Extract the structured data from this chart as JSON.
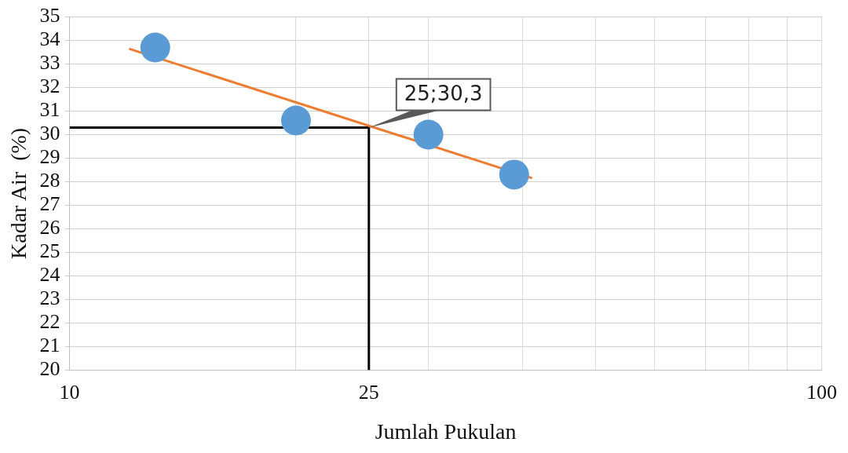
{
  "chart_data": {
    "type": "scatter",
    "xlabel": "Jumlah Pukulan",
    "ylabel": "Kadar Air  (%)",
    "log": "x",
    "grid": true,
    "legend": false,
    "marker": "circle",
    "xlim": [
      10,
      100
    ],
    "xticks": [
      10,
      {
        "value": 20,
        "label": null
      },
      25,
      {
        "value": 30,
        "label": null
      },
      {
        "value": 40,
        "label": null
      },
      {
        "value": 50,
        "label": null
      },
      {
        "value": 60,
        "label": null
      },
      {
        "value": 70,
        "label": null
      },
      {
        "value": 80,
        "label": null
      },
      {
        "value": 90,
        "label": null
      },
      100
    ],
    "ylim": [
      20,
      35
    ],
    "yticks": [
      20,
      21,
      22,
      23,
      24,
      25,
      26,
      27,
      28,
      29,
      30,
      31,
      32,
      33,
      34,
      35
    ],
    "series": [
      {
        "type": "scatter",
        "color": "#5b9bd5",
        "x": [
          13,
          20,
          30,
          39
        ],
        "values": [
          33.7,
          30.6,
          30.0,
          28.3
        ]
      },
      {
        "type": "line",
        "color": "#ed7d31",
        "marker": "none",
        "x": [
          12,
          41.2
        ],
        "values": [
          33.65,
          28.15
        ]
      },
      {
        "type": "line",
        "color": "#000000",
        "marker": "none",
        "x": [
          10,
          25,
          25
        ],
        "values": [
          30.3,
          30.3,
          20
        ]
      }
    ],
    "annotations": [
      {
        "text": "25;30,3",
        "x": 25,
        "y": 30.3
      }
    ]
  }
}
